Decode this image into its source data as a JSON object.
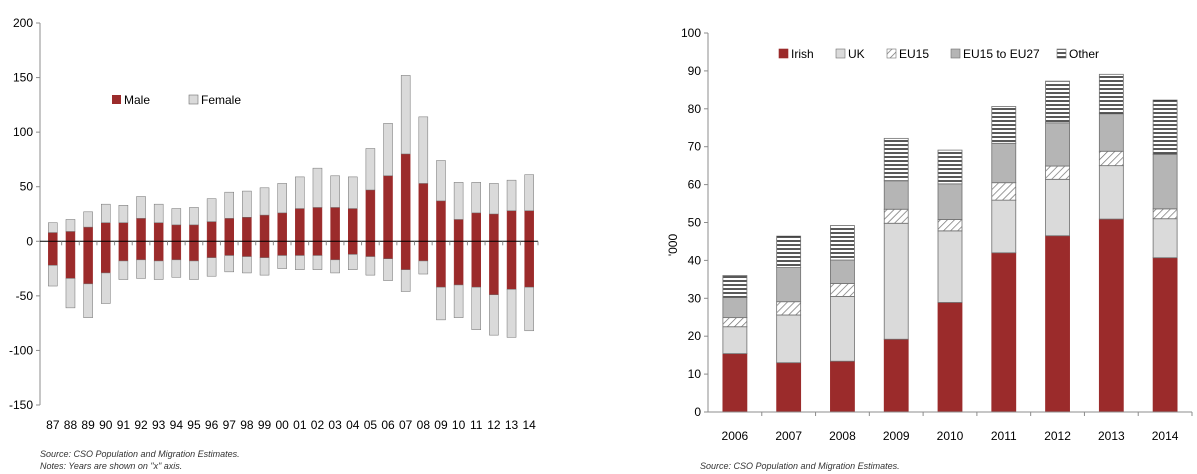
{
  "colors": {
    "male": "#9B2B2B",
    "female": "#DADADA",
    "irish": "#9B2B2B",
    "uk": "#DADADA",
    "eu15": "#FFFFFF",
    "eu15_27": "#B5B5B5",
    "other": "#FFFFFF",
    "outline": "#6F6F6F",
    "axis": "#8C8C8C"
  },
  "chart_data": [
    {
      "type": "bar",
      "stacked": true,
      "categories": [
        "87",
        "88",
        "89",
        "90",
        "91",
        "92",
        "93",
        "94",
        "95",
        "96",
        "97",
        "98",
        "99",
        "00",
        "01",
        "02",
        "03",
        "04",
        "05",
        "06",
        "07",
        "08",
        "09",
        "10",
        "11",
        "12",
        "13",
        "14"
      ],
      "series": [
        {
          "name": "Male",
          "positive": [
            8,
            9,
            13,
            17,
            17,
            21,
            17,
            15,
            15,
            18,
            21,
            22,
            24,
            26,
            30,
            31,
            31,
            30,
            47,
            60,
            80,
            53,
            37,
            20,
            26,
            25,
            28,
            28
          ],
          "negative": [
            -22,
            -34,
            -39,
            -29,
            -18,
            -17,
            -18,
            -17,
            -18,
            -15,
            -13,
            -14,
            -15,
            -13,
            -13,
            -13,
            -17,
            -12,
            -14,
            -16,
            -26,
            -18,
            -42,
            -40,
            -42,
            -49,
            -44,
            -42
          ]
        },
        {
          "name": "Female",
          "positive": [
            9,
            11,
            14,
            17,
            16,
            20,
            17,
            15,
            16,
            21,
            24,
            24,
            25,
            27,
            29,
            36,
            29,
            29,
            38,
            48,
            72,
            61,
            37,
            34,
            28,
            28,
            28,
            33
          ],
          "negative": [
            -19,
            -27,
            -31,
            -28,
            -17,
            -17,
            -17,
            -16,
            -17,
            -17,
            -15,
            -15,
            -16,
            -12,
            -13,
            -13,
            -12,
            -14,
            -17,
            -20,
            -20,
            -12,
            -30,
            -30,
            -39,
            -37,
            -44,
            -40
          ]
        }
      ],
      "ylim": [
        -150,
        200
      ],
      "yticks": [
        "200",
        "150",
        "100",
        "50",
        "0",
        "-50",
        "-100",
        "-150"
      ],
      "legend": "top-left",
      "notes": [
        "Source: CSO Population and Migration Estimates.",
        "Notes: Years are shown on \"x\" axis."
      ]
    },
    {
      "type": "bar",
      "stacked": true,
      "categories": [
        "2006",
        "2007",
        "2008",
        "2009",
        "2010",
        "2011",
        "2012",
        "2013",
        "2014"
      ],
      "series": [
        {
          "name": "Irish",
          "values": [
            15.4,
            13.0,
            13.4,
            19.2,
            28.9,
            42.0,
            46.5,
            50.9,
            40.7
          ]
        },
        {
          "name": "UK",
          "values": [
            7.1,
            12.6,
            17.1,
            30.6,
            18.9,
            13.9,
            14.9,
            14.1,
            10.3
          ]
        },
        {
          "name": "EU15",
          "values": [
            2.4,
            3.5,
            3.4,
            3.7,
            3.0,
            4.6,
            3.5,
            3.8,
            2.6
          ]
        },
        {
          "name": "EU15 to EU27",
          "values": [
            5.3,
            9.0,
            6.2,
            7.5,
            9.4,
            10.4,
            11.4,
            9.9,
            14.4
          ]
        },
        {
          "name": "Other",
          "values": [
            5.8,
            8.3,
            9.1,
            11.2,
            8.9,
            9.7,
            11.0,
            10.4,
            14.3
          ]
        }
      ],
      "ylabel": "'000",
      "ylim": [
        0,
        100
      ],
      "yticks": [
        "0",
        "10",
        "20",
        "30",
        "40",
        "50",
        "60",
        "70",
        "80",
        "90",
        "100"
      ],
      "legend": "top",
      "notes": [
        "Source: CSO Population and Migration Estimates."
      ]
    }
  ]
}
